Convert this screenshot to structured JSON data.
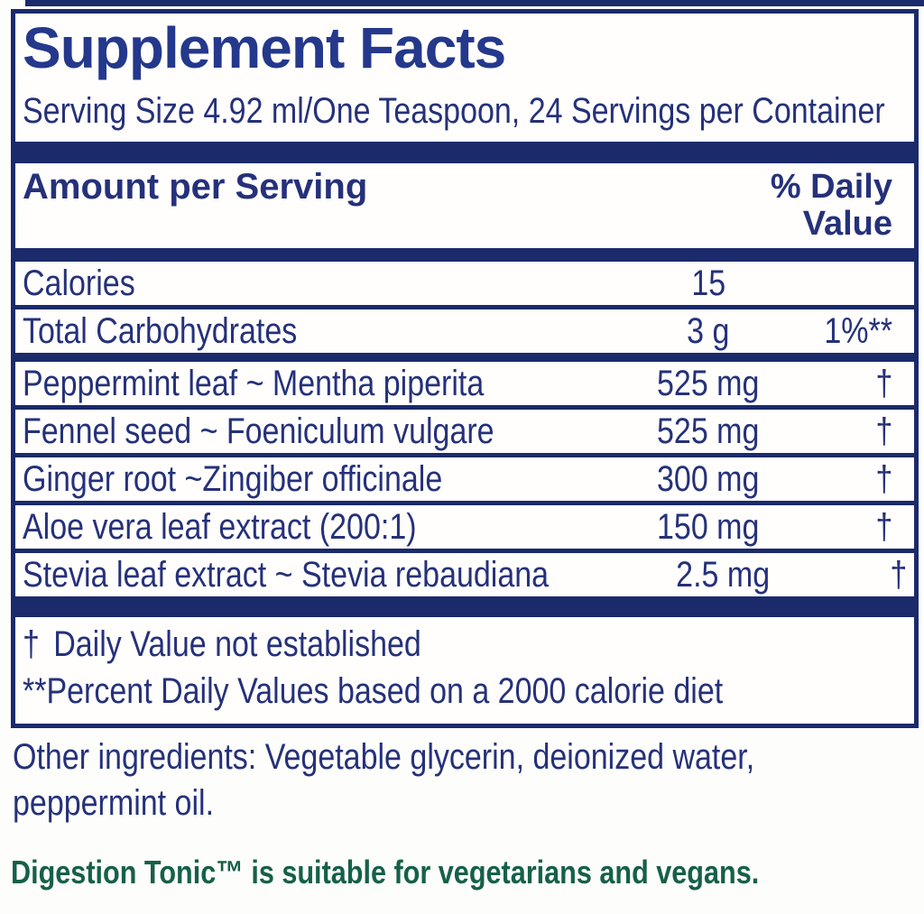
{
  "colors": {
    "navy": "#25317a",
    "bar": "#1b2a6b",
    "title": "#24388c",
    "green": "#16604a"
  },
  "header": {
    "title": "Supplement Facts",
    "serving_line": "Serving Size 4.92 ml/One Teaspoon, 24 Servings per Container"
  },
  "columns": {
    "amount_header": "Amount per Serving",
    "dv_header_line1": "% Daily",
    "dv_header_line2": "Value"
  },
  "rows": [
    {
      "name": "Calories",
      "amount": "15",
      "dv": ""
    },
    {
      "name": "Total Carbohydrates",
      "amount": "3 g",
      "dv": "1%**"
    },
    {
      "name": "Peppermint leaf ~ Mentha piperita",
      "amount": "525 mg",
      "dv": "†",
      "heavy_rule_above": true
    },
    {
      "name": "Fennel seed ~ Foeniculum vulgare",
      "amount": "525 mg",
      "dv": "†"
    },
    {
      "name": "Ginger root ~Zingiber officinale",
      "amount": "300 mg",
      "dv": "†"
    },
    {
      "name": "Aloe vera leaf extract (200:1)",
      "amount": "150 mg",
      "dv": "†"
    },
    {
      "name": "Stevia leaf extract ~ Stevia rebaudiana",
      "amount": "2.5 mg",
      "dv": "†"
    }
  ],
  "footnotes": {
    "dagger_symbol": "†",
    "dagger_text": "Daily Value not established",
    "percent_note": "**Percent Daily Values based on a 2000 calorie diet"
  },
  "other_ingredients": "Other ingredients: Vegetable glycerin, deionized water, peppermint oil.",
  "suitability": "Digestion Tonic™ is suitable for vegetarians and vegans."
}
